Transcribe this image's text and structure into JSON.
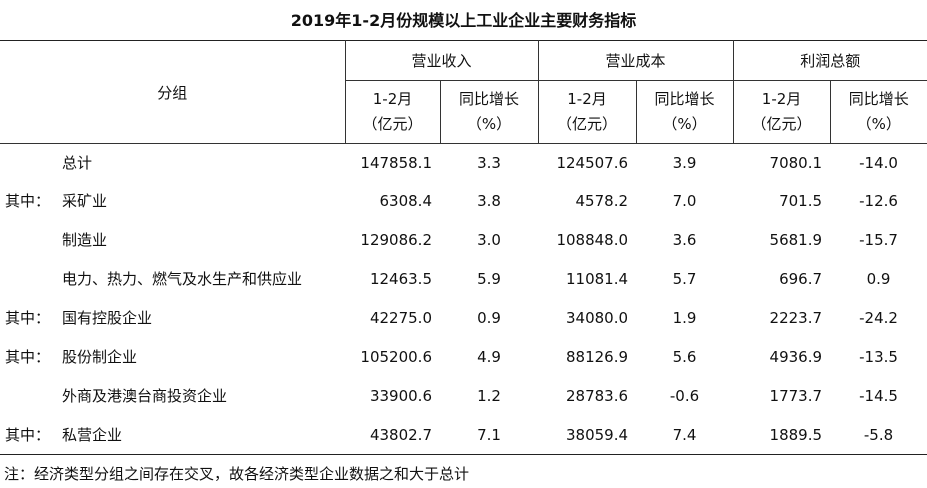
{
  "title": "2019年1-2月份规模以上工业企业主要财务指标",
  "table": {
    "group_header": "分组",
    "column_groups": [
      "营业收入",
      "营业成本",
      "利润总额"
    ],
    "sub_headers": [
      [
        "1-2月",
        "（亿元）"
      ],
      [
        "同比增长",
        "（%）"
      ],
      [
        "1-2月",
        "（亿元）"
      ],
      [
        "同比增长",
        "（%）"
      ],
      [
        "1-2月",
        "（亿元）"
      ],
      [
        "同比增长",
        "（%）"
      ]
    ],
    "rows": [
      {
        "label": "总计",
        "cells": [
          "147858.1",
          "3.3",
          "124507.6",
          "3.9",
          "7080.1",
          "-14.0"
        ]
      },
      {
        "prefix": "其中：",
        "label": "采矿业",
        "cells": [
          "6308.4",
          "3.8",
          "4578.2",
          "7.0",
          "701.5",
          "-12.6"
        ]
      },
      {
        "label": "制造业",
        "cells": [
          "129086.2",
          "3.0",
          "108848.0",
          "3.6",
          "5681.9",
          "-15.7"
        ]
      },
      {
        "label": "电力、热力、燃气及水生产和供应业",
        "cells": [
          "12463.5",
          "5.9",
          "11081.4",
          "5.7",
          "696.7",
          "0.9"
        ]
      },
      {
        "prefix": "其中：",
        "label": "国有控股企业",
        "cells": [
          "42275.0",
          "0.9",
          "34080.0",
          "1.9",
          "2223.7",
          "-24.2"
        ]
      },
      {
        "prefix": "其中：",
        "label": "股份制企业",
        "cells": [
          "105200.6",
          "4.9",
          "88126.9",
          "5.6",
          "4936.9",
          "-13.5"
        ]
      },
      {
        "label": "外商及港澳台商投资企业",
        "cells": [
          "33900.6",
          "1.2",
          "28783.6",
          "-0.6",
          "1773.7",
          "-14.5"
        ]
      },
      {
        "prefix": "其中：",
        "label": "私营企业",
        "cells": [
          "43802.7",
          "7.1",
          "38059.4",
          "7.4",
          "1889.5",
          "-5.8"
        ]
      }
    ]
  },
  "note": "注：经济类型分组之间存在交叉，故各经济类型企业数据之和大于总计"
}
